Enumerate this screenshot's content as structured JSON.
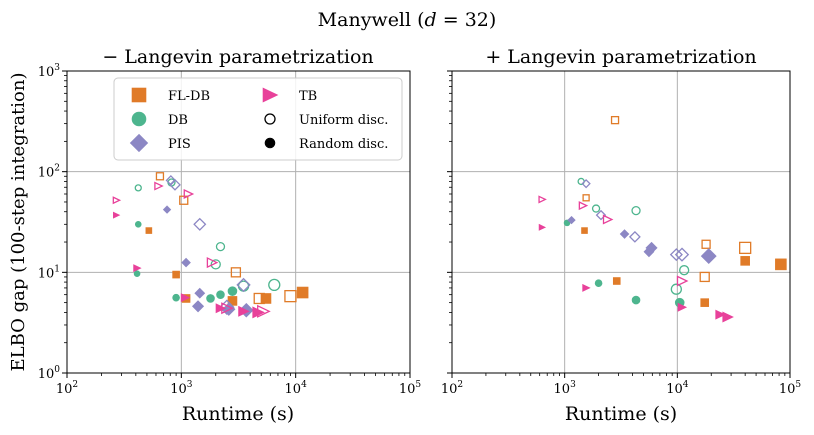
{
  "figure": {
    "suptitle": "Manywell (d = 32)",
    "suptitle_parts": {
      "prefix": "Manywell (",
      "var": "d",
      "eq": " = 32)"
    }
  },
  "legend": {
    "entries": [
      {
        "label": "FL-DB",
        "marker": "square",
        "color": "#E07B28",
        "filled": true
      },
      {
        "label": "TB",
        "marker": "triangle-right",
        "color": "#E8419A",
        "filled": true
      },
      {
        "label": "DB",
        "marker": "circle",
        "color": "#4DB58E",
        "filled": true
      },
      {
        "label": "Uniform disc.",
        "marker": "circle",
        "color": "#000000",
        "filled": false
      },
      {
        "label": "PIS",
        "marker": "diamond",
        "color": "#8C87C4",
        "filled": true
      },
      {
        "label": "Random disc.",
        "marker": "circle",
        "color": "#000000",
        "filled": true
      }
    ]
  },
  "chart_data": [
    {
      "type": "scatter",
      "title": "− Langevin parametrization",
      "xlabel": "Runtime (s)",
      "ylabel": "ELBO gap (100-step integration)",
      "xscale": "log",
      "yscale": "log",
      "xlim": [
        100,
        100000
      ],
      "ylim": [
        1,
        1000
      ],
      "x_tick_labels": [
        "10^2",
        "10^3",
        "10^4",
        "10^5"
      ],
      "y_tick_labels": [
        "10^0",
        "10^1",
        "10^2",
        "10^3"
      ],
      "grid": true,
      "grid_lines_x": [
        1000,
        10000
      ],
      "grid_lines_y": [
        10,
        100
      ],
      "legend_position": "top-center",
      "series": [
        {
          "method": "FL-DB",
          "disc": "uniform",
          "points": [
            [
              650,
              90,
              7
            ],
            [
              1050,
              52,
              8
            ],
            [
              3000,
              10,
              9
            ],
            [
              4800,
              5.5,
              10
            ],
            [
              9000,
              5.8,
              11
            ]
          ]
        },
        {
          "method": "FL-DB",
          "disc": "random",
          "points": [
            [
              520,
              26,
              6
            ],
            [
              900,
              9.5,
              7
            ],
            [
              1100,
              5.5,
              8
            ],
            [
              2800,
              5.2,
              9
            ],
            [
              5500,
              5.5,
              10
            ],
            [
              11500,
              6.3,
              11
            ]
          ]
        },
        {
          "method": "DB",
          "disc": "uniform",
          "points": [
            [
              420,
              69,
              6
            ],
            [
              820,
              78,
              7
            ],
            [
              2200,
              18,
              8
            ],
            [
              2000,
              12,
              9
            ],
            [
              3500,
              7.3,
              10
            ],
            [
              6500,
              7.5,
              11
            ]
          ]
        },
        {
          "method": "DB",
          "disc": "random",
          "points": [
            [
              420,
              30,
              6
            ],
            [
              410,
              9.7,
              6
            ],
            [
              900,
              5.6,
              7
            ],
            [
              1800,
              5.5,
              8
            ],
            [
              2200,
              6.0,
              8
            ],
            [
              2800,
              6.5,
              9
            ]
          ]
        },
        {
          "method": "PIS",
          "disc": "uniform",
          "points": [
            [
              810,
              82,
              7
            ],
            [
              880,
              74,
              8
            ],
            [
              1450,
              30,
              9
            ],
            [
              3500,
              7.5,
              10
            ],
            [
              2500,
              4.5,
              11
            ]
          ]
        },
        {
          "method": "PIS",
          "disc": "random",
          "points": [
            [
              750,
              42,
              6
            ],
            [
              1100,
              12.5,
              7
            ],
            [
              1450,
              6.2,
              8
            ],
            [
              1400,
              4.6,
              9
            ],
            [
              2600,
              4.3,
              10
            ],
            [
              3700,
              4.2,
              11
            ]
          ]
        },
        {
          "method": "TB",
          "disc": "uniform",
          "points": [
            [
              270,
              52,
              6
            ],
            [
              630,
              72,
              7
            ],
            [
              1150,
              60,
              8
            ],
            [
              1850,
              12.5,
              9
            ],
            [
              2500,
              4.4,
              10
            ],
            [
              5200,
              4.1,
              11
            ]
          ]
        },
        {
          "method": "TB",
          "disc": "random",
          "points": [
            [
              270,
              37,
              6
            ],
            [
              410,
              11,
              7
            ],
            [
              1080,
              5.6,
              8
            ],
            [
              2200,
              4.4,
              9
            ],
            [
              3500,
              4.1,
              10
            ],
            [
              4700,
              4.0,
              11
            ]
          ]
        }
      ]
    },
    {
      "type": "scatter",
      "title": "+ Langevin parametrization",
      "xlabel": "Runtime (s)",
      "ylabel": "",
      "xscale": "log",
      "yscale": "log",
      "xlim": [
        100,
        100000
      ],
      "ylim": [
        1,
        1000
      ],
      "x_tick_labels": [
        "10^2",
        "10^3",
        "10^4",
        "10^5"
      ],
      "y_tick_labels": [],
      "grid": true,
      "grid_lines_x": [
        1000,
        10000
      ],
      "grid_lines_y": [
        10,
        100
      ],
      "series": [
        {
          "method": "FL-DB",
          "disc": "uniform",
          "points": [
            [
              1550,
              55,
              6
            ],
            [
              2800,
              325,
              7
            ],
            [
              18000,
              19,
              8
            ],
            [
              17500,
              9,
              9
            ],
            [
              40000,
              17.5,
              11
            ]
          ]
        },
        {
          "method": "FL-DB",
          "disc": "random",
          "points": [
            [
              1500,
              26,
              6
            ],
            [
              2900,
              8.2,
              7
            ],
            [
              17500,
              5,
              8
            ],
            [
              40000,
              13,
              9
            ],
            [
              83000,
              12,
              11
            ]
          ]
        },
        {
          "method": "DB",
          "disc": "uniform",
          "points": [
            [
              1400,
              80,
              6
            ],
            [
              1900,
              43,
              7
            ],
            [
              4300,
              41,
              8
            ],
            [
              11500,
              10.5,
              9
            ],
            [
              9800,
              6.8,
              10
            ]
          ]
        },
        {
          "method": "DB",
          "disc": "random",
          "points": [
            [
              1050,
              31,
              6
            ],
            [
              2000,
              7.8,
              7
            ],
            [
              4300,
              5.3,
              8
            ],
            [
              10500,
              5,
              9
            ]
          ]
        },
        {
          "method": "PIS",
          "disc": "uniform",
          "points": [
            [
              1550,
              76,
              6
            ],
            [
              2100,
              37,
              7
            ],
            [
              4200,
              22.5,
              8
            ],
            [
              9800,
              15,
              9
            ],
            [
              11000,
              15,
              10
            ]
          ]
        },
        {
          "method": "PIS",
          "disc": "random",
          "points": [
            [
              1150,
              33,
              6
            ],
            [
              3400,
              24,
              7
            ],
            [
              5600,
              16,
              8
            ],
            [
              5900,
              17.5,
              9
            ],
            [
              19000,
              14.5,
              12
            ]
          ]
        },
        {
          "method": "TB",
          "disc": "uniform",
          "points": [
            [
              630,
              53,
              6
            ],
            [
              1450,
              46,
              7
            ],
            [
              2400,
              33.5,
              8
            ],
            [
              11000,
              8.2,
              9
            ]
          ]
        },
        {
          "method": "TB",
          "disc": "random",
          "points": [
            [
              630,
              28,
              6
            ],
            [
              1550,
              7,
              7
            ],
            [
              11000,
              4.5,
              8
            ],
            [
              24000,
              3.8,
              9
            ],
            [
              28000,
              3.6,
              10
            ]
          ]
        }
      ]
    }
  ]
}
